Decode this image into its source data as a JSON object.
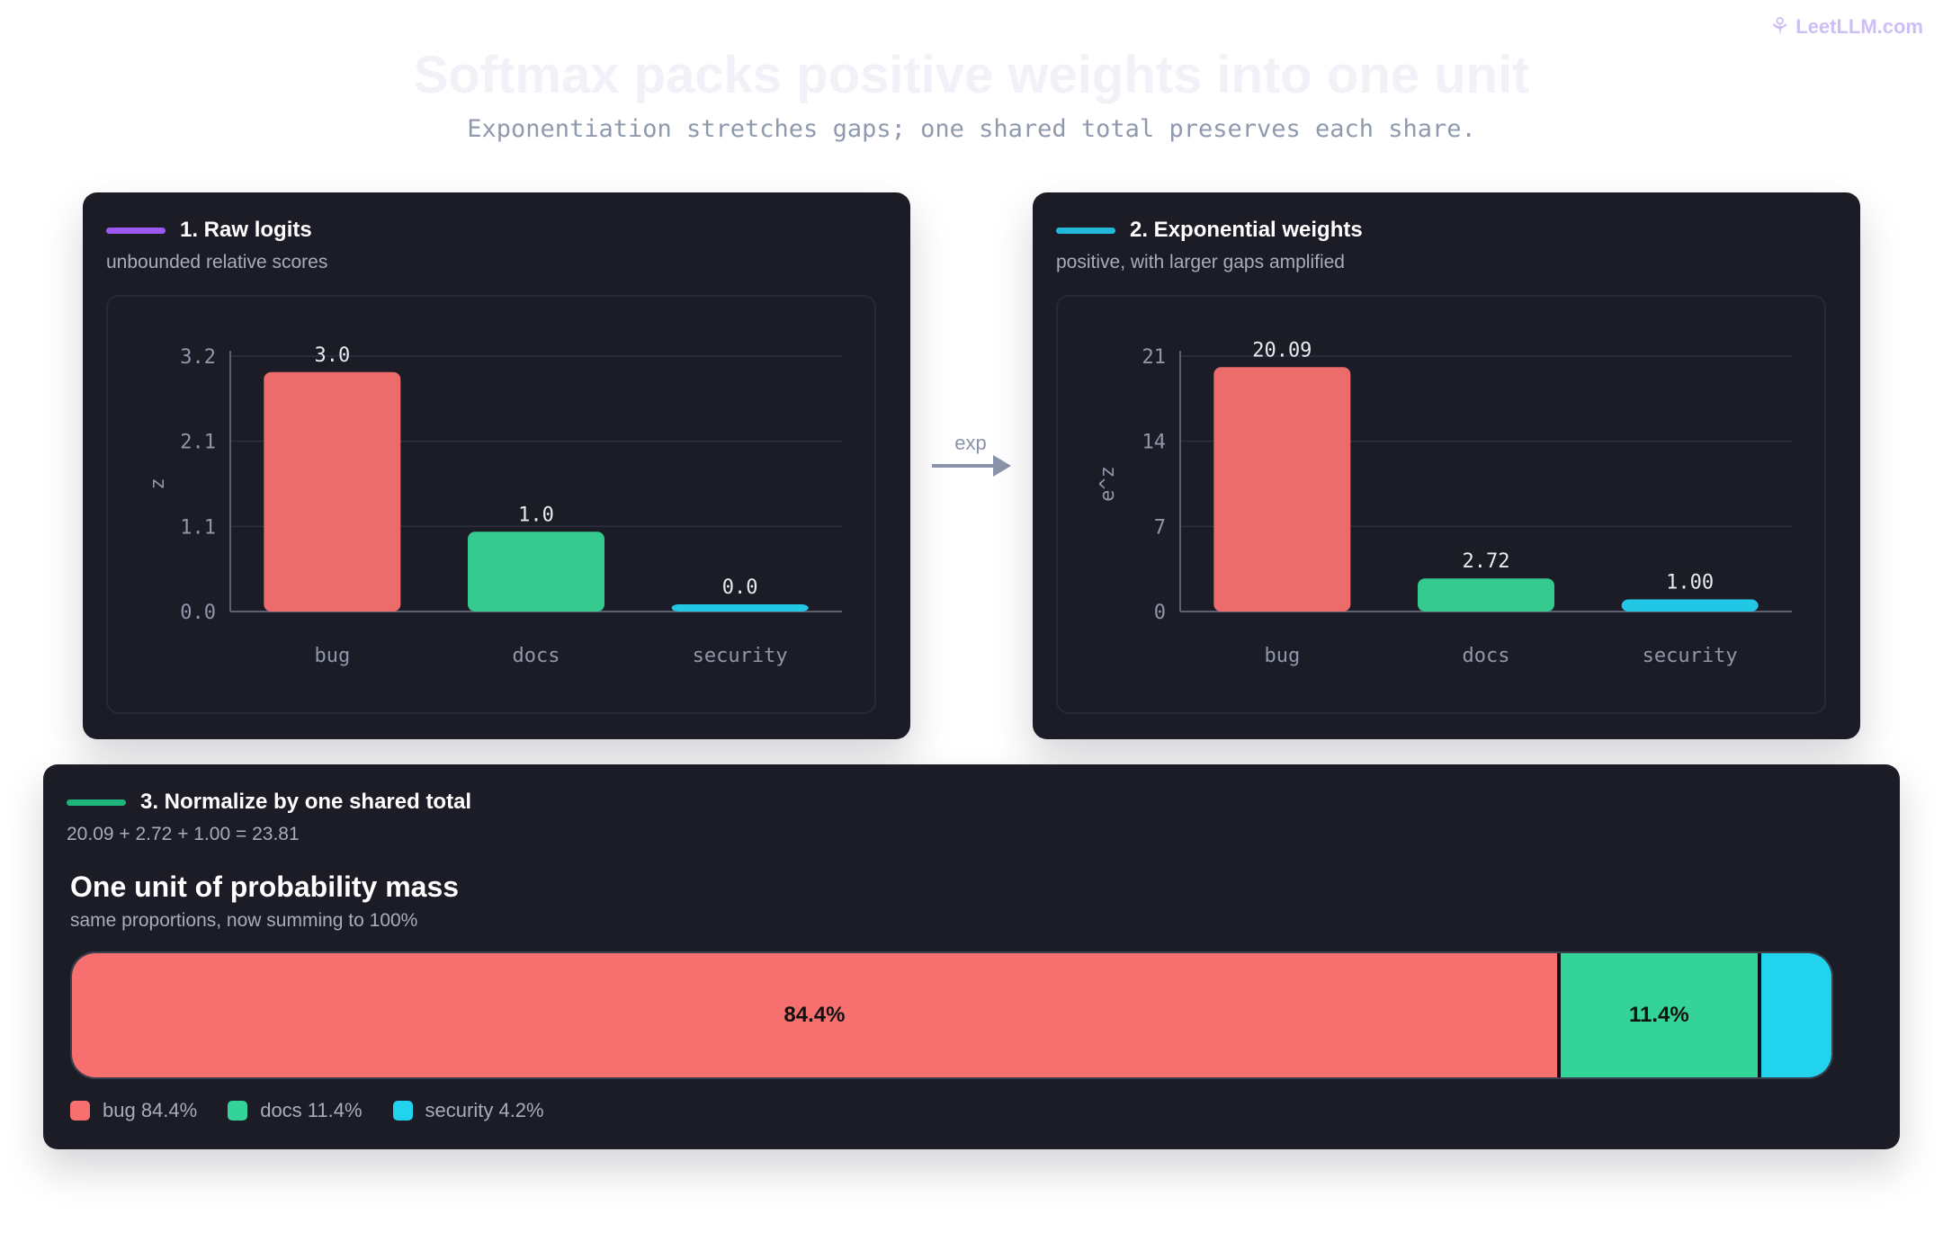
{
  "brand": {
    "icon": "brain-icon",
    "name": "LeetLLM.com"
  },
  "page": {
    "title": "Softmax packs positive weights into one unit",
    "subtitle": "Exponentiation stretches gaps; one shared total preserves each share."
  },
  "colors": {
    "bug": "#ec6b6b",
    "docs": "#34c98f",
    "security": "#22c7e6",
    "purple": "#9b59f0"
  },
  "panels": {
    "raw": {
      "title": "1. Raw logits",
      "subtitle": "unbounded relative scores",
      "accent": "#9b59f0"
    },
    "exp": {
      "title": "2. Exponential weights",
      "subtitle": "positive, with larger gaps amplified",
      "accent": "#22b8d9"
    },
    "norm": {
      "title": "3. Normalize by one shared total",
      "equation": "20.09 + 2.72 + 1.00 = 23.81",
      "mass_title": "One unit of probability mass",
      "mass_subtitle": "same proportions, now summing to 100%",
      "accent": "#1fb47a"
    }
  },
  "flow": {
    "label": "exp",
    "icon": "arrow-right-icon"
  },
  "chart_data": [
    {
      "type": "bar",
      "categories": [
        "bug",
        "docs",
        "security"
      ],
      "values": [
        3.0,
        1.0,
        0.0
      ],
      "value_labels": [
        "3.0",
        "1.0",
        "0.0"
      ],
      "ylabel": "z",
      "ylim": [
        0,
        3.2
      ],
      "yticks": [
        "0.0",
        "1.1",
        "2.1",
        "3.2"
      ],
      "grid": true,
      "colors": [
        "#ec6b6b",
        "#34c98f",
        "#22c7e6"
      ]
    },
    {
      "type": "bar",
      "categories": [
        "bug",
        "docs",
        "security"
      ],
      "values": [
        20.09,
        2.72,
        1.0
      ],
      "value_labels": [
        "20.09",
        "2.72",
        "1.00"
      ],
      "ylabel": "e^z",
      "ylim": [
        0,
        21
      ],
      "yticks": [
        "0",
        "7",
        "14",
        "21"
      ],
      "grid": true,
      "colors": [
        "#ec6b6b",
        "#34c98f",
        "#22c7e6"
      ]
    },
    {
      "type": "bar",
      "orientation": "horizontal-stacked",
      "categories": [
        "bug",
        "docs",
        "security"
      ],
      "values": [
        84.4,
        11.4,
        4.2
      ],
      "segment_labels": [
        "84.4%",
        "11.4%",
        ""
      ],
      "legend": [
        "bug 84.4%",
        "docs 11.4%",
        "security 4.2%"
      ],
      "colors": [
        "#f76f6f",
        "#34d399",
        "#22d3ee"
      ]
    }
  ]
}
